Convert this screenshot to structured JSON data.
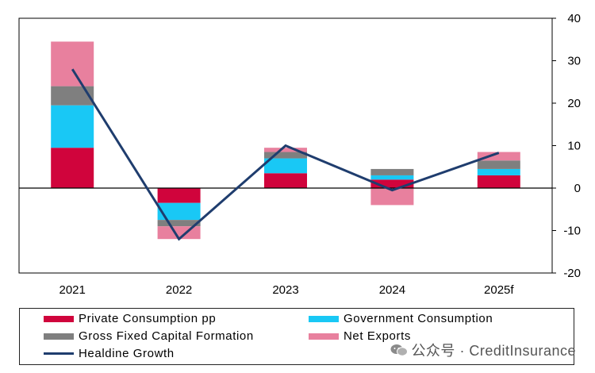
{
  "chart_data": {
    "type": "bar",
    "stacked": true,
    "categories": [
      "2021",
      "2022",
      "2023",
      "2024",
      "2025f"
    ],
    "y_axis": {
      "position": "right",
      "range": [
        -20,
        40
      ],
      "ticks": [
        40,
        30,
        20,
        10,
        0,
        -10,
        -20
      ]
    },
    "grid": false,
    "series": [
      {
        "name": "Private Consumption  pp",
        "color": "#d0043c",
        "values": [
          9.5,
          -3.5,
          3.5,
          2,
          3
        ]
      },
      {
        "name": "Government  Consumption",
        "color": "#19c8f5",
        "values": [
          10,
          -4,
          3.5,
          1,
          1.5
        ]
      },
      {
        "name": "Gross  Fixed  Capital  Formation",
        "color": "#7f7f7f",
        "values": [
          4.5,
          -1.5,
          1.5,
          1.5,
          2
        ]
      },
      {
        "name": "Net  Exports",
        "color": "#e8809e",
        "values": [
          10.5,
          -3,
          1,
          -4,
          2
        ]
      }
    ],
    "line": {
      "name": "Healdine  Growth",
      "color": "#1f3d6e",
      "values": [
        28,
        -12,
        10,
        -0.5,
        8.3
      ]
    },
    "legend_placement": "bottom"
  },
  "watermark": {
    "text": "公众号 · CreditInsurance"
  }
}
